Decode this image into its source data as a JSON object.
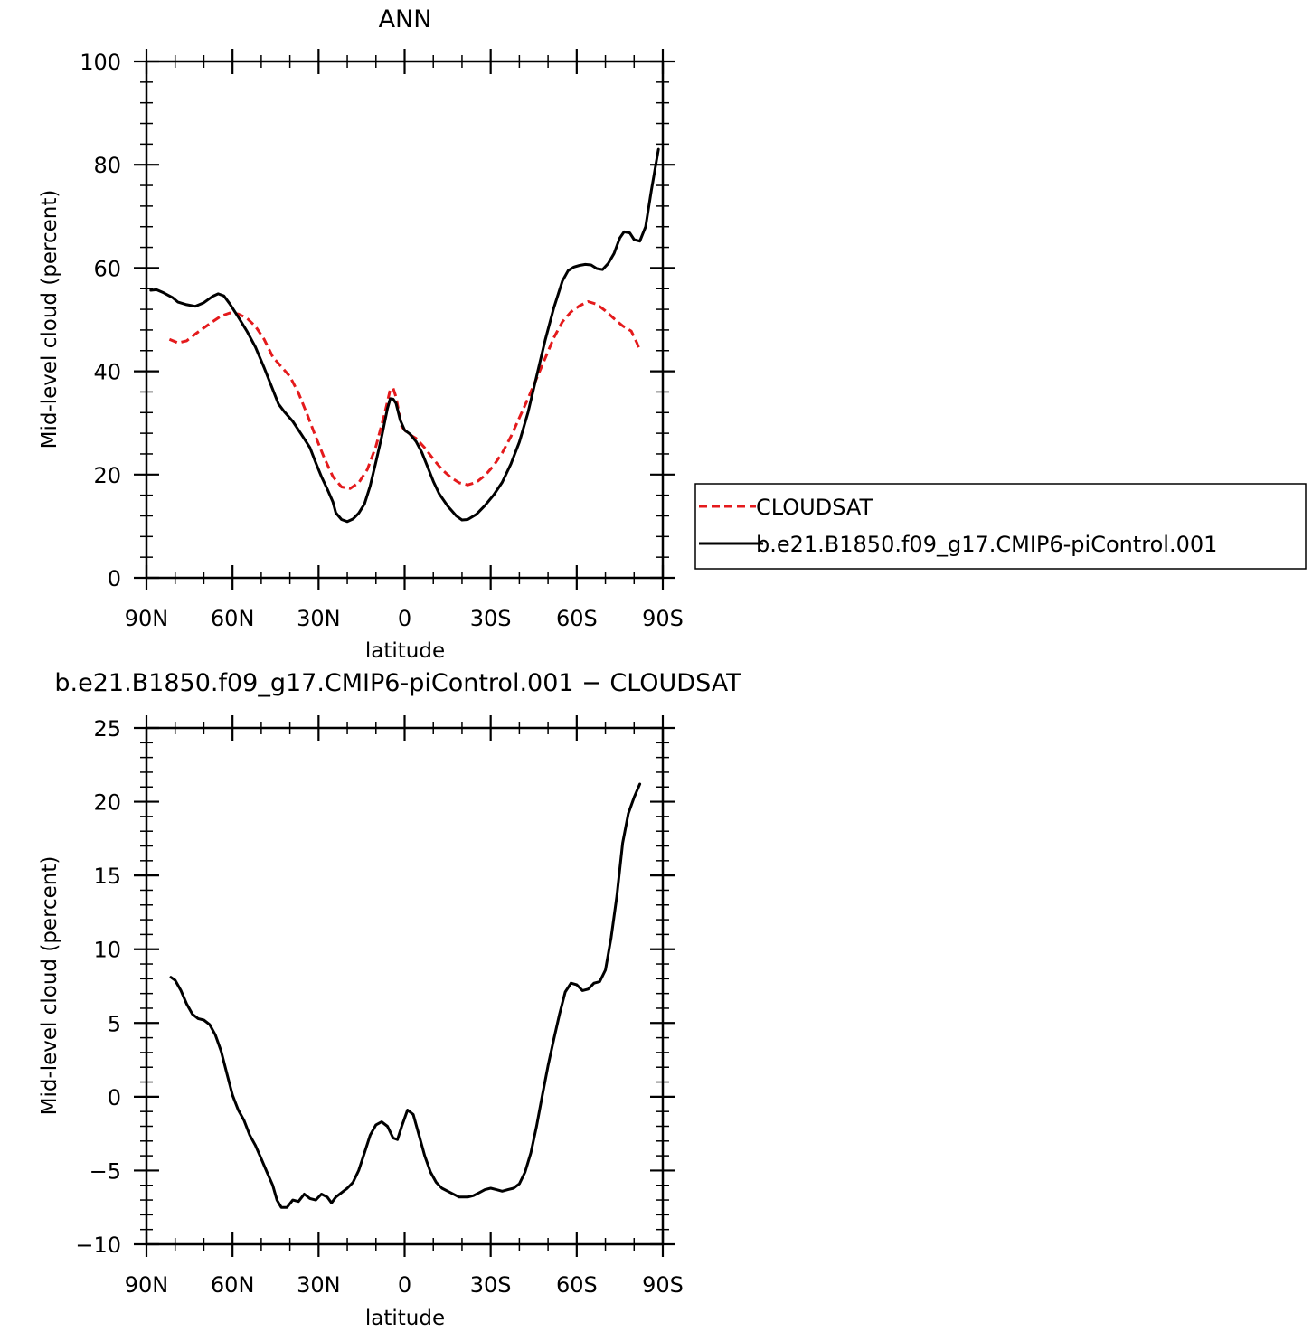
{
  "chart_data": [
    {
      "type": "line",
      "title": "ANN",
      "xlabel": "latitude",
      "ylabel": "Mid-level cloud (percent)",
      "xlim": [
        -90,
        90
      ],
      "ylim": [
        0,
        100
      ],
      "x_direction": "descending (90N at left, 90S at right)",
      "yticks": [
        "0",
        "20",
        "40",
        "60",
        "80",
        "100"
      ],
      "xticks": [
        {
          "lat": 90,
          "label": "90N"
        },
        {
          "lat": 60,
          "label": "60N"
        },
        {
          "lat": 30,
          "label": "30N"
        },
        {
          "lat": 0,
          "label": "0"
        },
        {
          "lat": -30,
          "label": "30S"
        },
        {
          "lat": -60,
          "label": "60S"
        },
        {
          "lat": -90,
          "label": "90S"
        }
      ],
      "legend": {
        "placement": "right, outside plot"
      },
      "series": [
        {
          "name": "CLOUDSAT",
          "color": "#e41a1c",
          "dash": "dashed",
          "points": [
            [
              82,
              46.2
            ],
            [
              79,
              45.5
            ],
            [
              76,
              45.9
            ],
            [
              73,
              47.2
            ],
            [
              70,
              48.4
            ],
            [
              67,
              49.6
            ],
            [
              64,
              50.7
            ],
            [
              61,
              51.3
            ],
            [
              58,
              51.1
            ],
            [
              55,
              50.3
            ],
            [
              52,
              48.7
            ],
            [
              49,
              46.2
            ],
            [
              46,
              42.8
            ],
            [
              43,
              40.9
            ],
            [
              40,
              39.0
            ],
            [
              37,
              35.8
            ],
            [
              34,
              31.7
            ],
            [
              31,
              27.3
            ],
            [
              28,
              23.2
            ],
            [
              25,
              19.6
            ],
            [
              22,
              17.6
            ],
            [
              19,
              17.3
            ],
            [
              16,
              18.4
            ],
            [
              13,
              21.0
            ],
            [
              10,
              25.5
            ],
            [
              7,
              31.7
            ],
            [
              5,
              36.5
            ],
            [
              4,
              36.7
            ],
            [
              3,
              35.0
            ],
            [
              2,
              32.0
            ],
            [
              1,
              29.3
            ],
            [
              -1,
              28.0
            ],
            [
              -4,
              27.0
            ],
            [
              -7,
              25.2
            ],
            [
              -10,
              23.0
            ],
            [
              -13,
              21.0
            ],
            [
              -16,
              19.5
            ],
            [
              -19,
              18.4
            ],
            [
              -22,
              18.0
            ],
            [
              -25,
              18.5
            ],
            [
              -28,
              19.8
            ],
            [
              -31,
              21.7
            ],
            [
              -34,
              24.2
            ],
            [
              -37,
              27.3
            ],
            [
              -40,
              31.0
            ],
            [
              -43,
              34.7
            ],
            [
              -46,
              38.6
            ],
            [
              -49,
              42.5
            ],
            [
              -52,
              46.5
            ],
            [
              -55,
              49.6
            ],
            [
              -58,
              51.5
            ],
            [
              -61,
              52.7
            ],
            [
              -64,
              53.5
            ],
            [
              -67,
              53.0
            ],
            [
              -70,
              51.7
            ],
            [
              -73,
              50.2
            ],
            [
              -76,
              48.8
            ],
            [
              -79,
              47.8
            ],
            [
              -81,
              45.5
            ],
            [
              -82,
              44.0
            ]
          ]
        },
        {
          "name": "b.e21.B1850.f09_g17.CMIP6-piControl.001",
          "color": "#000000",
          "dash": "solid",
          "points": [
            [
              88.5,
              55.7
            ],
            [
              86.5,
              55.8
            ],
            [
              84,
              55.2
            ],
            [
              81,
              54.3
            ],
            [
              79,
              53.4
            ],
            [
              76,
              52.9
            ],
            [
              73,
              52.6
            ],
            [
              70,
              53.3
            ],
            [
              67,
              54.5
            ],
            [
              65,
              55.0
            ],
            [
              63,
              54.6
            ],
            [
              61,
              53.1
            ],
            [
              58,
              50.5
            ],
            [
              55,
              47.8
            ],
            [
              52,
              44.7
            ],
            [
              49,
              40.7
            ],
            [
              46,
              36.5
            ],
            [
              44,
              33.7
            ],
            [
              42,
              32.2
            ],
            [
              39,
              30.3
            ],
            [
              36,
              27.8
            ],
            [
              33,
              25.2
            ],
            [
              31,
              22.3
            ],
            [
              29,
              19.6
            ],
            [
              27,
              17.2
            ],
            [
              25,
              14.7
            ],
            [
              24,
              12.6
            ],
            [
              22,
              11.3
            ],
            [
              20,
              10.9
            ],
            [
              18,
              11.4
            ],
            [
              16,
              12.5
            ],
            [
              14,
              14.3
            ],
            [
              12,
              17.8
            ],
            [
              10,
              22.5
            ],
            [
              8,
              27.3
            ],
            [
              6,
              32.8
            ],
            [
              5,
              34.7
            ],
            [
              4,
              34.6
            ],
            [
              3,
              33.8
            ],
            [
              1.5,
              30.5
            ],
            [
              0,
              28.6
            ],
            [
              -2,
              27.8
            ],
            [
              -4,
              26.4
            ],
            [
              -6,
              24.3
            ],
            [
              -8,
              21.5
            ],
            [
              -10,
              18.7
            ],
            [
              -12,
              16.3
            ],
            [
              -15,
              13.9
            ],
            [
              -18,
              12.0
            ],
            [
              -20,
              11.2
            ],
            [
              -22,
              11.3
            ],
            [
              -25,
              12.3
            ],
            [
              -28,
              14.0
            ],
            [
              -31,
              16.0
            ],
            [
              -34,
              18.5
            ],
            [
              -37,
              22.0
            ],
            [
              -40,
              26.3
            ],
            [
              -43,
              32.0
            ],
            [
              -46,
              39.0
            ],
            [
              -49,
              46.0
            ],
            [
              -52,
              52.3
            ],
            [
              -55,
              57.5
            ],
            [
              -57,
              59.5
            ],
            [
              -59,
              60.2
            ],
            [
              -61,
              60.5
            ],
            [
              -63,
              60.7
            ],
            [
              -65,
              60.6
            ],
            [
              -67,
              59.9
            ],
            [
              -69,
              59.7
            ],
            [
              -71,
              60.9
            ],
            [
              -73,
              62.8
            ],
            [
              -75,
              65.8
            ],
            [
              -76.5,
              67.0
            ],
            [
              -78.5,
              66.8
            ],
            [
              -80,
              65.5
            ],
            [
              -82,
              65.2
            ],
            [
              -84,
              68.0
            ],
            [
              -86,
              75.0
            ],
            [
              -88.5,
              83.0
            ]
          ]
        }
      ]
    },
    {
      "type": "line",
      "title": "b.e21.B1850.f09_g17.CMIP6-piControl.001  −  CLOUDSAT",
      "xlabel": "latitude",
      "ylabel": "Mid-level cloud (percent)",
      "xlim": [
        -90,
        90
      ],
      "ylim": [
        -10,
        25
      ],
      "x_direction": "descending (90N at left, 90S at right)",
      "yticks": [
        "−10",
        "−5",
        "0",
        "5",
        "10",
        "15",
        "20",
        "25"
      ],
      "xticks": [
        {
          "lat": 90,
          "label": "90N"
        },
        {
          "lat": 60,
          "label": "60N"
        },
        {
          "lat": 30,
          "label": "30N"
        },
        {
          "lat": 0,
          "label": "0"
        },
        {
          "lat": -30,
          "label": "30S"
        },
        {
          "lat": -60,
          "label": "60S"
        },
        {
          "lat": -90,
          "label": "90S"
        }
      ],
      "series": [
        {
          "color": "#000000",
          "dash": "solid",
          "points": [
            [
              81.5,
              8.1
            ],
            [
              80,
              7.9
            ],
            [
              78,
              7.2
            ],
            [
              76,
              6.3
            ],
            [
              74,
              5.6
            ],
            [
              72,
              5.3
            ],
            [
              70,
              5.2
            ],
            [
              68,
              4.9
            ],
            [
              66,
              4.2
            ],
            [
              64,
              3.1
            ],
            [
              62,
              1.6
            ],
            [
              60,
              0.1
            ],
            [
              58,
              -0.9
            ],
            [
              56,
              -1.6
            ],
            [
              54,
              -2.6
            ],
            [
              52,
              -3.3
            ],
            [
              50,
              -4.2
            ],
            [
              48,
              -5.1
            ],
            [
              46,
              -6.0
            ],
            [
              44.5,
              -7.0
            ],
            [
              43,
              -7.5
            ],
            [
              41,
              -7.5
            ],
            [
              39,
              -7.0
            ],
            [
              37,
              -7.1
            ],
            [
              35,
              -6.6
            ],
            [
              33,
              -6.9
            ],
            [
              31,
              -7.0
            ],
            [
              29,
              -6.6
            ],
            [
              27,
              -6.8
            ],
            [
              25.5,
              -7.2
            ],
            [
              24,
              -6.8
            ],
            [
              22,
              -6.5
            ],
            [
              20,
              -6.2
            ],
            [
              18,
              -5.8
            ],
            [
              16,
              -5.0
            ],
            [
              14,
              -3.8
            ],
            [
              12,
              -2.6
            ],
            [
              10,
              -1.9
            ],
            [
              8,
              -1.7
            ],
            [
              6,
              -2.0
            ],
            [
              4,
              -2.8
            ],
            [
              2.5,
              -2.9
            ],
            [
              1,
              -2.0
            ],
            [
              -1,
              -0.9
            ],
            [
              -3,
              -1.2
            ],
            [
              -5,
              -2.6
            ],
            [
              -7,
              -4.0
            ],
            [
              -9,
              -5.1
            ],
            [
              -11,
              -5.8
            ],
            [
              -13,
              -6.2
            ],
            [
              -16,
              -6.5
            ],
            [
              -19,
              -6.8
            ],
            [
              -22,
              -6.8
            ],
            [
              -24,
              -6.7
            ],
            [
              -26,
              -6.5
            ],
            [
              -28,
              -6.3
            ],
            [
              -30,
              -6.2
            ],
            [
              -32,
              -6.3
            ],
            [
              -34,
              -6.4
            ],
            [
              -36,
              -6.3
            ],
            [
              -38,
              -6.2
            ],
            [
              -40,
              -5.9
            ],
            [
              -42,
              -5.1
            ],
            [
              -44,
              -3.8
            ],
            [
              -46,
              -2.0
            ],
            [
              -48,
              0.1
            ],
            [
              -50,
              2.1
            ],
            [
              -52,
              3.9
            ],
            [
              -54,
              5.6
            ],
            [
              -56,
              7.1
            ],
            [
              -58,
              7.7
            ],
            [
              -60,
              7.6
            ],
            [
              -62,
              7.2
            ],
            [
              -64,
              7.3
            ],
            [
              -66,
              7.7
            ],
            [
              -68,
              7.8
            ],
            [
              -70,
              8.6
            ],
            [
              -72,
              10.8
            ],
            [
              -74,
              13.6
            ],
            [
              -76,
              17.2
            ],
            [
              -78,
              19.2
            ],
            [
              -80,
              20.3
            ],
            [
              -82,
              21.2
            ]
          ]
        }
      ]
    }
  ]
}
